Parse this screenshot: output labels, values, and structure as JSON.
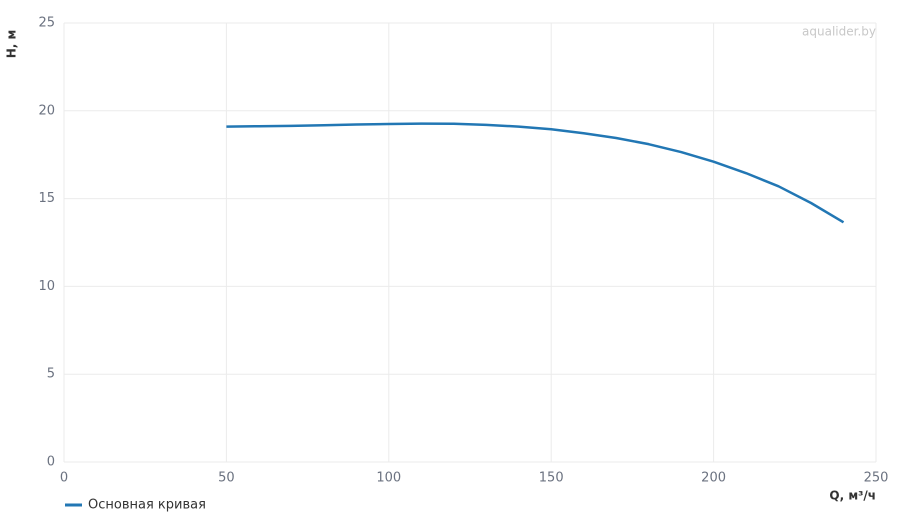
{
  "chart_data": {
    "type": "line",
    "x_label": "Q, м³/ч",
    "y_label": "H, м",
    "watermark": "aqualider.by",
    "x": [
      50,
      60,
      70,
      80,
      90,
      100,
      110,
      120,
      130,
      140,
      150,
      160,
      170,
      180,
      190,
      200,
      210,
      220,
      230,
      240
    ],
    "series": [
      {
        "name": "Основная кривая",
        "color": "#2277b4",
        "values": [
          19.1,
          19.12,
          19.14,
          19.18,
          19.22,
          19.25,
          19.27,
          19.26,
          19.2,
          19.1,
          18.95,
          18.72,
          18.45,
          18.1,
          17.65,
          17.1,
          16.45,
          15.7,
          14.75,
          13.65
        ]
      }
    ],
    "xlim": [
      0,
      250
    ],
    "xticks": [
      0,
      50,
      100,
      150,
      200,
      250
    ],
    "ylim": [
      0,
      25
    ],
    "yticks": [
      0,
      5,
      10,
      15,
      20,
      25
    ],
    "grid": true
  }
}
